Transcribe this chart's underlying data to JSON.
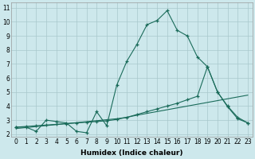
{
  "xlabel": "Humidex (Indice chaleur)",
  "bg_color": "#cde8ec",
  "grid_color": "#a8c8cc",
  "line_color": "#1a6b5a",
  "xlim": [
    -0.5,
    23.5
  ],
  "ylim": [
    1.8,
    11.4
  ],
  "xticks": [
    0,
    1,
    2,
    3,
    4,
    5,
    6,
    7,
    8,
    9,
    10,
    11,
    12,
    13,
    14,
    15,
    16,
    17,
    18,
    19,
    20,
    21,
    22,
    23
  ],
  "yticks": [
    2,
    3,
    4,
    5,
    6,
    7,
    8,
    9,
    10,
    11
  ],
  "series1_x": [
    0,
    1,
    2,
    3,
    4,
    5,
    6,
    7,
    8,
    9,
    10,
    11,
    12,
    13,
    14,
    15,
    16,
    17,
    18,
    19,
    20,
    21,
    22,
    23
  ],
  "series1_y": [
    2.5,
    2.5,
    2.2,
    3.0,
    2.9,
    2.8,
    2.2,
    2.1,
    3.6,
    2.6,
    5.5,
    7.2,
    8.4,
    9.8,
    10.1,
    10.8,
    9.4,
    9.0,
    7.5,
    6.8,
    5.0,
    4.0,
    3.2,
    2.8
  ],
  "series2_x": [
    0,
    1,
    2,
    3,
    4,
    5,
    6,
    7,
    8,
    9,
    10,
    11,
    12,
    13,
    14,
    15,
    16,
    17,
    18,
    19,
    20,
    21,
    22,
    23
  ],
  "series2_y": [
    2.5,
    2.55,
    2.6,
    2.65,
    2.7,
    2.75,
    2.8,
    2.85,
    2.9,
    2.95,
    3.05,
    3.2,
    3.4,
    3.6,
    3.8,
    4.0,
    4.2,
    4.45,
    4.7,
    6.8,
    5.0,
    3.95,
    3.1,
    2.8
  ],
  "series3_x": [
    0,
    1,
    2,
    3,
    4,
    5,
    6,
    7,
    8,
    9,
    10,
    11,
    12,
    13,
    14,
    15,
    16,
    17,
    18,
    19,
    20,
    21,
    22,
    23
  ],
  "series3_y": [
    2.4,
    2.47,
    2.54,
    2.61,
    2.68,
    2.75,
    2.82,
    2.89,
    2.96,
    3.03,
    3.1,
    3.2,
    3.35,
    3.48,
    3.61,
    3.74,
    3.87,
    4.0,
    4.13,
    4.26,
    4.39,
    4.52,
    4.65,
    4.78
  ],
  "fontsize_tick": 5.5,
  "fontsize_label": 6.5
}
